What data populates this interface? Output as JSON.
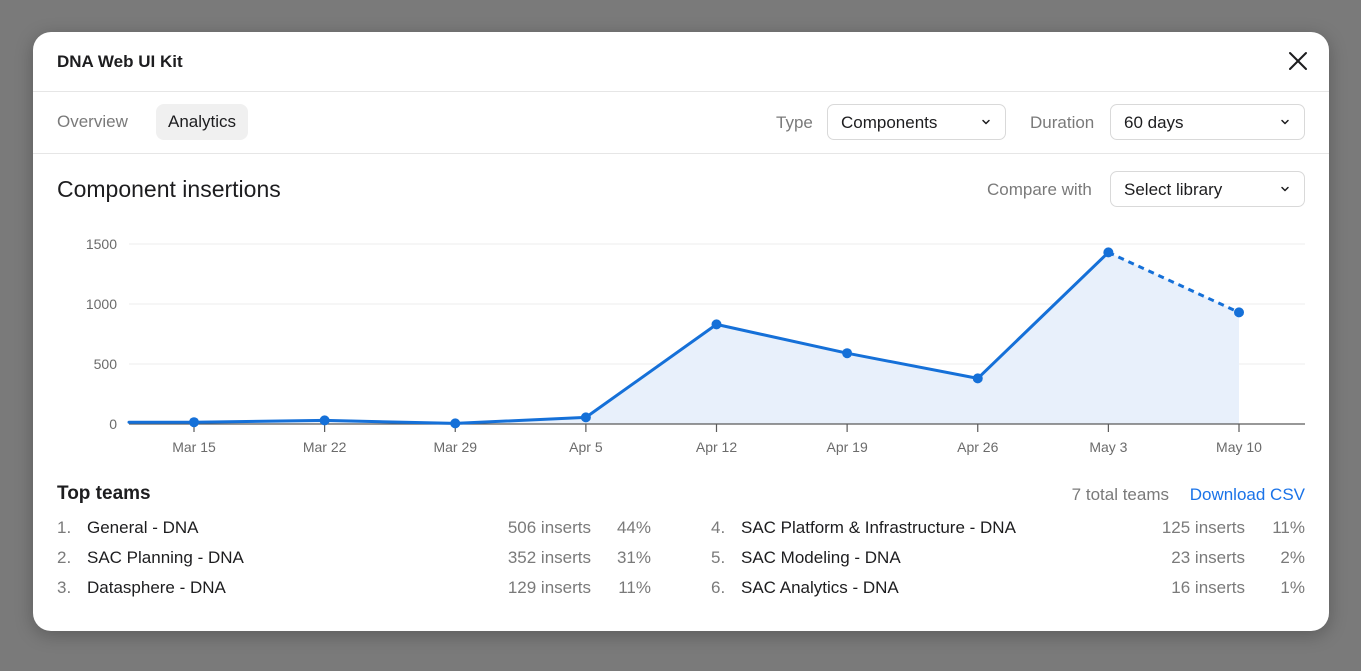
{
  "modal": {
    "title": "DNA Web UI Kit"
  },
  "tabs": [
    {
      "label": "Overview",
      "active": false
    },
    {
      "label": "Analytics",
      "active": true
    }
  ],
  "filters": {
    "type_label": "Type",
    "type_value": "Components",
    "duration_label": "Duration",
    "duration_value": "60 days",
    "compare_label": "Compare with",
    "compare_value": "Select library"
  },
  "section_title": "Component insertions",
  "colors": {
    "accent": "#1a73e8",
    "line": "#1570d8",
    "area": "#e8f0fb"
  },
  "chart_data": {
    "type": "area",
    "title": "",
    "xlabel": "",
    "ylabel": "",
    "categories": [
      "Mar 15",
      "Mar 22",
      "Mar 29",
      "Apr 5",
      "Apr 12",
      "Apr 19",
      "Apr 26",
      "May 3",
      "May 10"
    ],
    "series": [
      {
        "values": [
          15,
          30,
          5,
          55,
          830,
          590,
          380,
          1430,
          930
        ],
        "projected_last_segment": true
      }
    ],
    "ylim": [
      0,
      1500
    ],
    "y_ticks": [
      0,
      500,
      1000,
      1500
    ],
    "y_tick_labels": [
      "0",
      "500",
      "1000",
      "1500"
    ],
    "grid": true,
    "legend": "none"
  },
  "teams": {
    "title": "Top teams",
    "total": "7 total teams",
    "download": "Download CSV",
    "items": [
      {
        "rank": "1.",
        "name": "General - DNA",
        "inserts": "506 inserts",
        "pct": "44%"
      },
      {
        "rank": "2.",
        "name": "SAC Planning - DNA",
        "inserts": "352 inserts",
        "pct": "31%"
      },
      {
        "rank": "3.",
        "name": "Datasphere - DNA",
        "inserts": "129 inserts",
        "pct": "11%"
      },
      {
        "rank": "4.",
        "name": "SAC Platform & Infrastructure - DNA",
        "inserts": "125 inserts",
        "pct": "11%"
      },
      {
        "rank": "5.",
        "name": "SAC Modeling - DNA",
        "inserts": "23 inserts",
        "pct": "2%"
      },
      {
        "rank": "6.",
        "name": "SAC Analytics - DNA",
        "inserts": "16 inserts",
        "pct": "1%"
      }
    ]
  }
}
